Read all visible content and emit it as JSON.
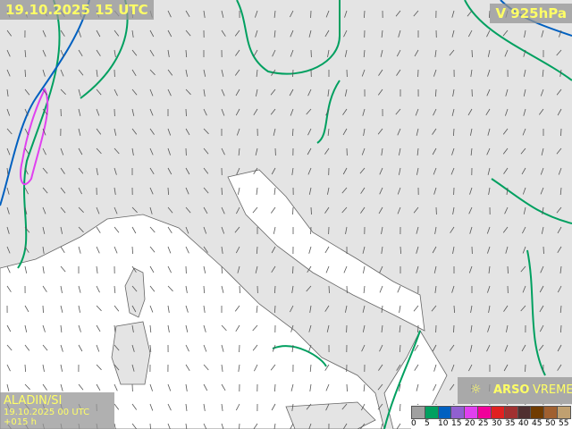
{
  "header": {
    "valid_time": "19.10.2025 15 UTC",
    "parameter": "V 925hPa"
  },
  "model": {
    "name": "ALADIN/SI",
    "run": "19.10.2025 00 UTC +015 h"
  },
  "brand": {
    "name": "ARSO",
    "suffix": "VREME",
    "icon": "sun-icon"
  },
  "legend": {
    "labels": [
      "0",
      "5",
      "10",
      "15",
      "20",
      "25",
      "30",
      "35",
      "40",
      "45",
      "50",
      "55"
    ],
    "colors": [
      "#a0a0a0",
      "#00a060",
      "#0060c0",
      "#9060d0",
      "#e040f0",
      "#f0009a",
      "#e02020",
      "#a03030",
      "#503030",
      "#703c00",
      "#a06030",
      "#c0a070"
    ]
  },
  "colors": {
    "land": "#e4e4e4",
    "sea": "#ffffff",
    "contour_5": "#00a060",
    "contour_10": "#0060c0",
    "contour_20": "#e040f0"
  }
}
